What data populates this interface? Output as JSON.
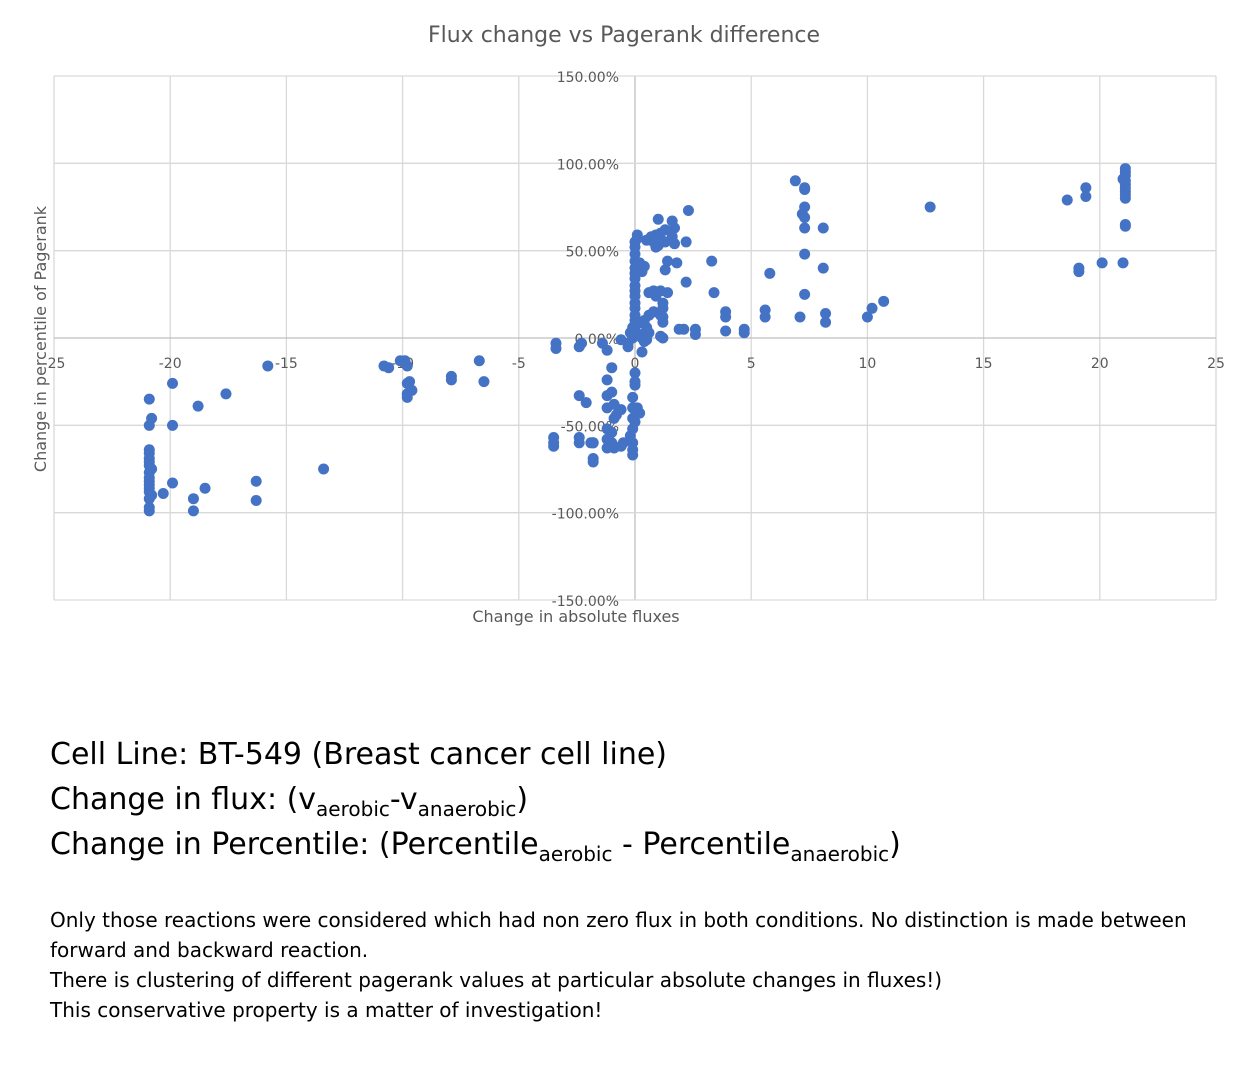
{
  "chart_data": {
    "type": "scatter",
    "title": "Flux change vs Pagerank difference",
    "xlabel": "Change in absolute fluxes",
    "ylabel": "Change in percentile of Pagerank",
    "xlim": [
      -25,
      25
    ],
    "ylim": [
      -1.5,
      1.5
    ],
    "x_ticks": [
      -25,
      -20,
      -15,
      -10,
      -5,
      0,
      5,
      10,
      15,
      20,
      25
    ],
    "y_ticks": [
      -1.5,
      -1.0,
      -0.5,
      0.0,
      0.5,
      1.0,
      1.5
    ],
    "x_tick_labels": [
      "-25",
      "-20",
      "-15",
      "-10",
      "-5",
      "0",
      "5",
      "10",
      "15",
      "20",
      "25"
    ],
    "y_tick_labels": [
      "-150.00%",
      "-100.00%",
      "-50.00%",
      "0.00%",
      "50.00%",
      "100.00%",
      "150.00%"
    ],
    "grid": true,
    "legend": "none",
    "marker_color": "#4472c4",
    "series": [
      {
        "points": [
          [
            -20.9,
            -0.35
          ],
          [
            -20.9,
            -0.5
          ],
          [
            -20.8,
            -0.46
          ],
          [
            -20.9,
            -0.64
          ],
          [
            -20.9,
            -0.66
          ],
          [
            -20.9,
            -0.69
          ],
          [
            -20.9,
            -0.71
          ],
          [
            -20.8,
            -0.75
          ],
          [
            -20.9,
            -0.73
          ],
          [
            -20.9,
            -0.77
          ],
          [
            -20.9,
            -0.8
          ],
          [
            -20.9,
            -0.82
          ],
          [
            -20.9,
            -0.84
          ],
          [
            -20.9,
            -0.86
          ],
          [
            -20.9,
            -0.88
          ],
          [
            -20.8,
            -0.9
          ],
          [
            -20.9,
            -0.92
          ],
          [
            -20.9,
            -0.97
          ],
          [
            -20.9,
            -0.99
          ],
          [
            -20.3,
            -0.89
          ],
          [
            -19.9,
            -0.26
          ],
          [
            -19.9,
            -0.5
          ],
          [
            -19.9,
            -0.83
          ],
          [
            -19.0,
            -0.92
          ],
          [
            -19.0,
            -0.99
          ],
          [
            -18.8,
            -0.39
          ],
          [
            -18.5,
            -0.86
          ],
          [
            -17.6,
            -0.32
          ],
          [
            -16.3,
            -0.82
          ],
          [
            -16.3,
            -0.93
          ],
          [
            -15.8,
            -0.16
          ],
          [
            -13.4,
            -0.75
          ],
          [
            -10.8,
            -0.16
          ],
          [
            -10.6,
            -0.17
          ],
          [
            -10.1,
            -0.13
          ],
          [
            -9.9,
            -0.13
          ],
          [
            -9.8,
            -0.16
          ],
          [
            -9.8,
            -0.26
          ],
          [
            -9.7,
            -0.25
          ],
          [
            -9.8,
            -0.32
          ],
          [
            -9.8,
            -0.34
          ],
          [
            -9.6,
            -0.3
          ],
          [
            -7.9,
            -0.22
          ],
          [
            -7.9,
            -0.24
          ],
          [
            -6.7,
            -0.13
          ],
          [
            -6.5,
            -0.25
          ],
          [
            -3.5,
            -0.57
          ],
          [
            -3.5,
            -0.6
          ],
          [
            -3.5,
            -0.62
          ],
          [
            -3.4,
            -0.03
          ],
          [
            -3.4,
            -0.06
          ],
          [
            -2.4,
            -0.05
          ],
          [
            -2.3,
            -0.03
          ],
          [
            -2.4,
            -0.33
          ],
          [
            -2.1,
            -0.37
          ],
          [
            -2.4,
            -0.57
          ],
          [
            -2.4,
            -0.6
          ],
          [
            -1.9,
            -0.6
          ],
          [
            -1.8,
            -0.6
          ],
          [
            -1.8,
            -0.69
          ],
          [
            -1.8,
            -0.71
          ],
          [
            -1.8,
            -0.6
          ],
          [
            -1.4,
            -0.03
          ],
          [
            -1.2,
            -0.07
          ],
          [
            -1.2,
            -0.24
          ],
          [
            -1.0,
            -0.17
          ],
          [
            -1.2,
            -0.33
          ],
          [
            -1.0,
            -0.31
          ],
          [
            -1.2,
            -0.4
          ],
          [
            -0.9,
            -0.38
          ],
          [
            -1.2,
            -0.52
          ],
          [
            -1.0,
            -0.54
          ],
          [
            -1.2,
            -0.58
          ],
          [
            -1.0,
            -0.6
          ],
          [
            -1.2,
            -0.63
          ],
          [
            -0.9,
            -0.63
          ],
          [
            -0.9,
            -0.46
          ],
          [
            -0.8,
            -0.44
          ],
          [
            -0.6,
            -0.41
          ],
          [
            -0.6,
            -0.62
          ],
          [
            -0.5,
            -0.6
          ],
          [
            -0.6,
            -0.01
          ],
          [
            -0.3,
            -0.05
          ],
          [
            -0.3,
            -0.03
          ],
          [
            -0.2,
            0.03
          ],
          [
            -0.1,
            0.06
          ],
          [
            -0.2,
            -0.56
          ],
          [
            -0.1,
            -0.52
          ],
          [
            -0.1,
            -0.6
          ],
          [
            -0.1,
            -0.64
          ],
          [
            -0.1,
            -0.67
          ],
          [
            -0.1,
            -0.34
          ],
          [
            -0.1,
            -0.4
          ],
          [
            0.0,
            -0.41
          ],
          [
            -0.1,
            -0.46
          ],
          [
            0.0,
            -0.48
          ],
          [
            0.0,
            -0.27
          ],
          [
            0.0,
            -0.2
          ],
          [
            0.0,
            -0.25
          ],
          [
            0.1,
            -0.4
          ],
          [
            0.2,
            -0.43
          ],
          [
            -0.1,
            0.0
          ],
          [
            0.0,
            0.04
          ],
          [
            0.1,
            0.08
          ],
          [
            0.2,
            0.02
          ],
          [
            0.3,
            0.0
          ],
          [
            0.4,
            -0.02
          ],
          [
            0.5,
            -0.01
          ],
          [
            0.3,
            -0.08
          ],
          [
            0.0,
            0.1
          ],
          [
            0.0,
            0.13
          ],
          [
            0.0,
            0.17
          ],
          [
            0.0,
            0.2
          ],
          [
            0.0,
            0.24
          ],
          [
            0.0,
            0.27
          ],
          [
            0.0,
            0.3
          ],
          [
            0.0,
            0.34
          ],
          [
            0.0,
            0.37
          ],
          [
            0.0,
            0.4
          ],
          [
            0.0,
            0.44
          ],
          [
            0.0,
            0.48
          ],
          [
            0.0,
            0.52
          ],
          [
            0.0,
            0.55
          ],
          [
            0.1,
            0.57
          ],
          [
            0.1,
            0.59
          ],
          [
            0.2,
            0.43
          ],
          [
            0.3,
            0.38
          ],
          [
            0.4,
            0.41
          ],
          [
            0.5,
            0.56
          ],
          [
            0.6,
            0.26
          ],
          [
            0.7,
            0.58
          ],
          [
            0.8,
            0.55
          ],
          [
            0.8,
            0.27
          ],
          [
            0.9,
            0.24
          ],
          [
            0.9,
            0.52
          ],
          [
            0.9,
            0.59
          ],
          [
            1.0,
            0.68
          ],
          [
            1.0,
            0.58
          ],
          [
            1.0,
            0.53
          ],
          [
            1.1,
            0.56
          ],
          [
            1.1,
            0.6
          ],
          [
            1.1,
            0.27
          ],
          [
            1.2,
            0.2
          ],
          [
            1.2,
            0.17
          ],
          [
            1.2,
            0.12
          ],
          [
            1.2,
            0.09
          ],
          [
            1.1,
            0.01
          ],
          [
            1.2,
            0.0
          ],
          [
            1.3,
            0.62
          ],
          [
            1.3,
            0.55
          ],
          [
            1.3,
            0.39
          ],
          [
            1.4,
            0.44
          ],
          [
            1.4,
            0.26
          ],
          [
            0.8,
            0.15
          ],
          [
            1.1,
            0.13
          ],
          [
            0.6,
            0.13
          ],
          [
            0.5,
            0.06
          ],
          [
            0.4,
            0.1
          ],
          [
            0.6,
            0.03
          ],
          [
            1.6,
            0.67
          ],
          [
            1.6,
            0.58
          ],
          [
            1.7,
            0.63
          ],
          [
            1.7,
            0.54
          ],
          [
            1.8,
            0.43
          ],
          [
            1.9,
            0.05
          ],
          [
            2.1,
            0.05
          ],
          [
            2.2,
            0.32
          ],
          [
            2.2,
            0.55
          ],
          [
            2.3,
            0.73
          ],
          [
            2.6,
            0.05
          ],
          [
            2.6,
            0.02
          ],
          [
            3.3,
            0.44
          ],
          [
            3.4,
            0.26
          ],
          [
            3.9,
            0.15
          ],
          [
            3.9,
            0.12
          ],
          [
            3.9,
            0.04
          ],
          [
            4.7,
            0.05
          ],
          [
            4.7,
            0.03
          ],
          [
            5.6,
            0.16
          ],
          [
            5.6,
            0.12
          ],
          [
            5.8,
            0.37
          ],
          [
            6.9,
            0.9
          ],
          [
            7.1,
            0.12
          ],
          [
            7.2,
            0.71
          ],
          [
            7.3,
            0.86
          ],
          [
            7.3,
            0.85
          ],
          [
            7.3,
            0.75
          ],
          [
            7.3,
            0.69
          ],
          [
            7.3,
            0.63
          ],
          [
            7.3,
            0.48
          ],
          [
            7.3,
            0.25
          ],
          [
            8.1,
            0.63
          ],
          [
            8.1,
            0.4
          ],
          [
            8.2,
            0.09
          ],
          [
            8.2,
            0.14
          ],
          [
            10.0,
            0.12
          ],
          [
            10.2,
            0.17
          ],
          [
            10.7,
            0.21
          ],
          [
            12.7,
            0.75
          ],
          [
            18.6,
            0.79
          ],
          [
            19.1,
            0.4
          ],
          [
            19.1,
            0.38
          ],
          [
            19.4,
            0.81
          ],
          [
            19.4,
            0.86
          ],
          [
            20.1,
            0.43
          ],
          [
            21.0,
            0.91
          ],
          [
            21.1,
            0.97
          ],
          [
            21.1,
            0.95
          ],
          [
            21.1,
            0.93
          ],
          [
            21.1,
            0.9
          ],
          [
            21.1,
            0.88
          ],
          [
            21.1,
            0.86
          ],
          [
            21.1,
            0.84
          ],
          [
            21.1,
            0.82
          ],
          [
            21.1,
            0.8
          ],
          [
            21.1,
            0.64
          ],
          [
            21.1,
            0.65
          ],
          [
            21.0,
            0.43
          ]
        ]
      }
    ]
  },
  "notes": {
    "cell_line": "Cell Line: BT-549 (Breast cancer cell line)",
    "flux_prefix": "Change in flux: (v",
    "flux_sub1": "aerobic",
    "flux_mid": "-v",
    "flux_sub2": "anaerobic",
    "flux_suffix": ")",
    "pct_prefix": "Change in Percentile: (Percentile",
    "pct_sub1": "aerobic",
    "pct_mid": " - Percentile",
    "pct_sub2": "anaerobic",
    "pct_suffix": ")",
    "para1": "Only those reactions were considered which had non zero flux in both conditions. No distinction is made between forward and backward reaction.",
    "para2": "There is clustering of different pagerank values at particular absolute changes in fluxes!)",
    "para3": "This conservative property is a matter of investigation!"
  }
}
